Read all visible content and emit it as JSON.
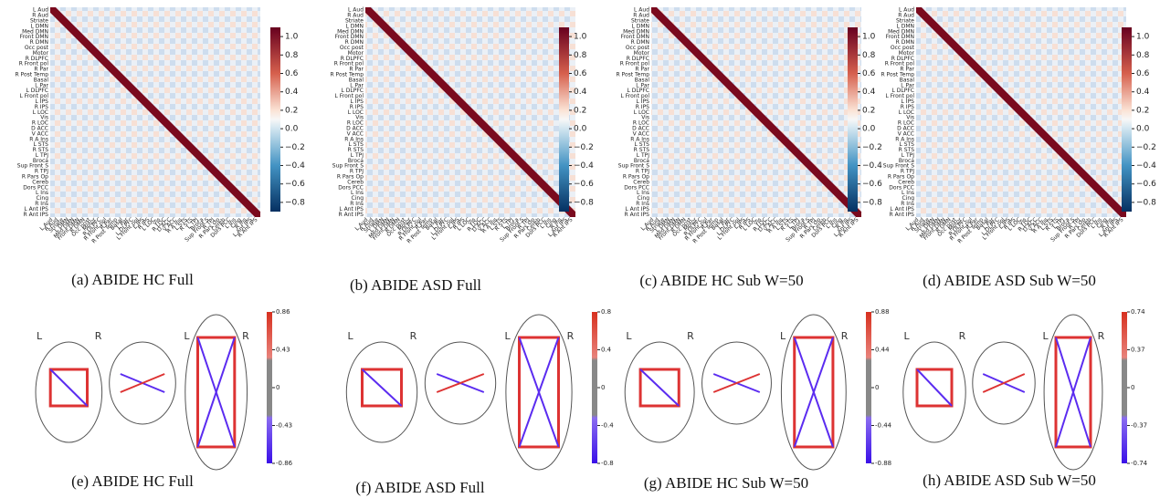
{
  "regions": [
    "L Aud",
    "R Aud",
    "Striate",
    "L DMN",
    "Med DMN",
    "Front DMN",
    "R DMN",
    "Occ post",
    "Motor",
    "R DLPFC",
    "R Front pol",
    "R Par",
    "R Post Temp",
    "Basal",
    "L Par",
    "L DLPFC",
    "L Front pol",
    "L IPS",
    "R IPS",
    "L LOC",
    "Vis",
    "R LOC",
    "D ACC",
    "V ACC",
    "R A Ins",
    "L STS",
    "R STS",
    "L TPJ",
    "Broca",
    "Sup Front S",
    "R TPJ",
    "R Pars Op",
    "Cereb",
    "Dors PCC",
    "L Ins",
    "Cing",
    "R Ins",
    "L Ant IPS",
    "R Ant IPS"
  ],
  "brain_labels": [
    "L",
    "R",
    "L",
    "R"
  ],
  "heatmaps": [
    {
      "caption": "(a) ABIDE HC Full",
      "clim": [
        -0.9,
        1.1
      ],
      "cticks": [
        {
          "value": 1,
          "label": "1.0"
        },
        0.8,
        0.6,
        0.4,
        0.2,
        {
          "value": 0,
          "label": "0.0"
        },
        {
          "value": -0.2,
          "label": "−0.2"
        },
        {
          "value": -0.4,
          "label": "−0.4"
        },
        {
          "value": -0.6,
          "label": "−0.6"
        },
        {
          "value": -0.8,
          "label": "−0.8"
        }
      ]
    },
    {
      "caption": "(b) ABIDE ASD Full",
      "clim": [
        -0.9,
        1.1
      ],
      "cticks": [
        {
          "value": 1,
          "label": "1.0"
        },
        0.8,
        0.6,
        0.4,
        0.2,
        {
          "value": 0,
          "label": "0.0"
        },
        {
          "value": -0.2,
          "label": "−0.2"
        },
        {
          "value": -0.4,
          "label": "−0.4"
        },
        {
          "value": -0.6,
          "label": "−0.6"
        },
        {
          "value": -0.8,
          "label": "−0.8"
        }
      ]
    },
    {
      "caption": "(c) ABIDE HC Sub W=50",
      "clim": [
        -0.9,
        1.1
      ],
      "cticks": [
        {
          "value": 1,
          "label": "1.0"
        },
        0.8,
        0.6,
        0.4,
        0.2,
        {
          "value": 0,
          "label": "0.0"
        },
        {
          "value": -0.2,
          "label": "−0.2"
        },
        {
          "value": -0.4,
          "label": "−0.4"
        },
        {
          "value": -0.6,
          "label": "−0.6"
        },
        {
          "value": -0.8,
          "label": "−0.8"
        }
      ]
    },
    {
      "caption": "(d) ABIDE ASD Sub W=50",
      "clim": [
        -0.9,
        1.1
      ],
      "cticks": [
        {
          "value": 1,
          "label": "1.0"
        },
        0.8,
        0.6,
        0.4,
        0.2,
        {
          "value": 0,
          "label": "0.0"
        },
        {
          "value": -0.2,
          "label": "−0.2"
        },
        {
          "value": -0.4,
          "label": "−0.4"
        },
        {
          "value": -0.6,
          "label": "−0.6"
        },
        {
          "value": -0.8,
          "label": "−0.8"
        }
      ]
    }
  ],
  "brains": [
    {
      "caption": "(e) ABIDE HC Full",
      "clim": [
        -0.86,
        0.86
      ],
      "cticks": [
        0.86,
        0.43,
        0,
        -0.43,
        -0.86
      ]
    },
    {
      "caption": "(f) ABIDE ASD Full",
      "clim": [
        -0.8,
        0.8
      ],
      "cticks": [
        0.8,
        0.4,
        0,
        -0.4,
        -0.8
      ]
    },
    {
      "caption": "(g) ABIDE HC Sub W=50",
      "clim": [
        -0.88,
        0.88
      ],
      "cticks": [
        0.88,
        0.44,
        0,
        -0.44,
        -0.88
      ]
    },
    {
      "caption": "(h) ABIDE ASD Sub W=50",
      "clim": [
        -0.74,
        0.74
      ],
      "cticks": [
        0.74,
        0.37,
        0,
        -0.37,
        -0.74
      ]
    }
  ]
}
